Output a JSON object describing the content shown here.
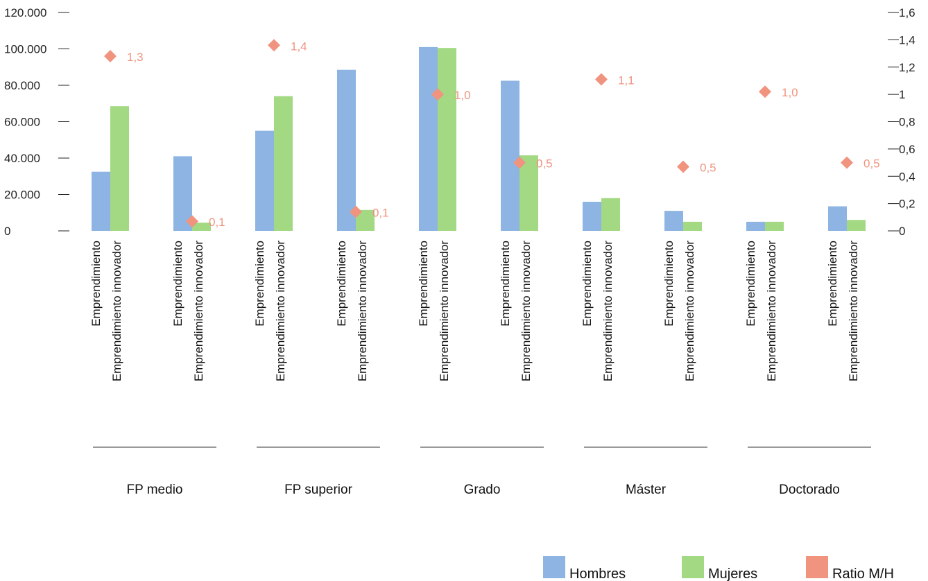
{
  "chart_data": {
    "type": "bar",
    "groups": [
      "FP medio",
      "FP superior",
      "Grado",
      "Máster",
      "Doctorado"
    ],
    "subcategories": [
      "Emprendimiento",
      "Emprendimiento innovador"
    ],
    "categories": [
      "FP medio - Emprendimiento",
      "FP medio - Emprendimiento innovador",
      "FP superior - Emprendimiento",
      "FP superior - Emprendimiento innovador",
      "Grado - Emprendimiento",
      "Grado - Emprendimiento innovador",
      "Máster - Emprendimiento",
      "Máster - Emprendimiento innovador",
      "Doctorado - Emprendimiento",
      "Doctorado - Emprendimiento innovador"
    ],
    "series": [
      {
        "name": "Hombres",
        "kind": "bar",
        "axis": "left",
        "color": "#8DB4E2",
        "values": [
          32500,
          41000,
          55000,
          88500,
          101000,
          82500,
          16000,
          11000,
          5000,
          13500
        ]
      },
      {
        "name": "Mujeres",
        "kind": "bar",
        "axis": "left",
        "color": "#A3D982",
        "values": [
          68500,
          4500,
          74000,
          11500,
          100500,
          41500,
          18000,
          5000,
          5000,
          6000
        ]
      },
      {
        "name": "Ratio M/H",
        "kind": "scatter",
        "axis": "right",
        "color": "#F0947F",
        "values": [
          1.28,
          0.07,
          1.36,
          0.14,
          1.0,
          0.5,
          1.11,
          0.47,
          1.02,
          0.5
        ],
        "labels": [
          "1,3",
          "0,1",
          "1,4",
          "0,1",
          "1,0",
          "0,5",
          "1,1",
          "0,5",
          "1,0",
          "0,5"
        ]
      }
    ],
    "y_left": {
      "min": 0,
      "max": 120000,
      "ticks": [
        "0",
        "20.000",
        "40.000",
        "60.000",
        "80.000",
        "100.000",
        "120.000"
      ]
    },
    "y_right": {
      "min": 0,
      "max": 1.6,
      "ticks": [
        "0",
        "0,2",
        "0,4",
        "0,6",
        "0,8",
        "1",
        "1,2",
        "1,4",
        "1,6"
      ]
    },
    "legend_position": "bottom-right",
    "grid": false
  }
}
